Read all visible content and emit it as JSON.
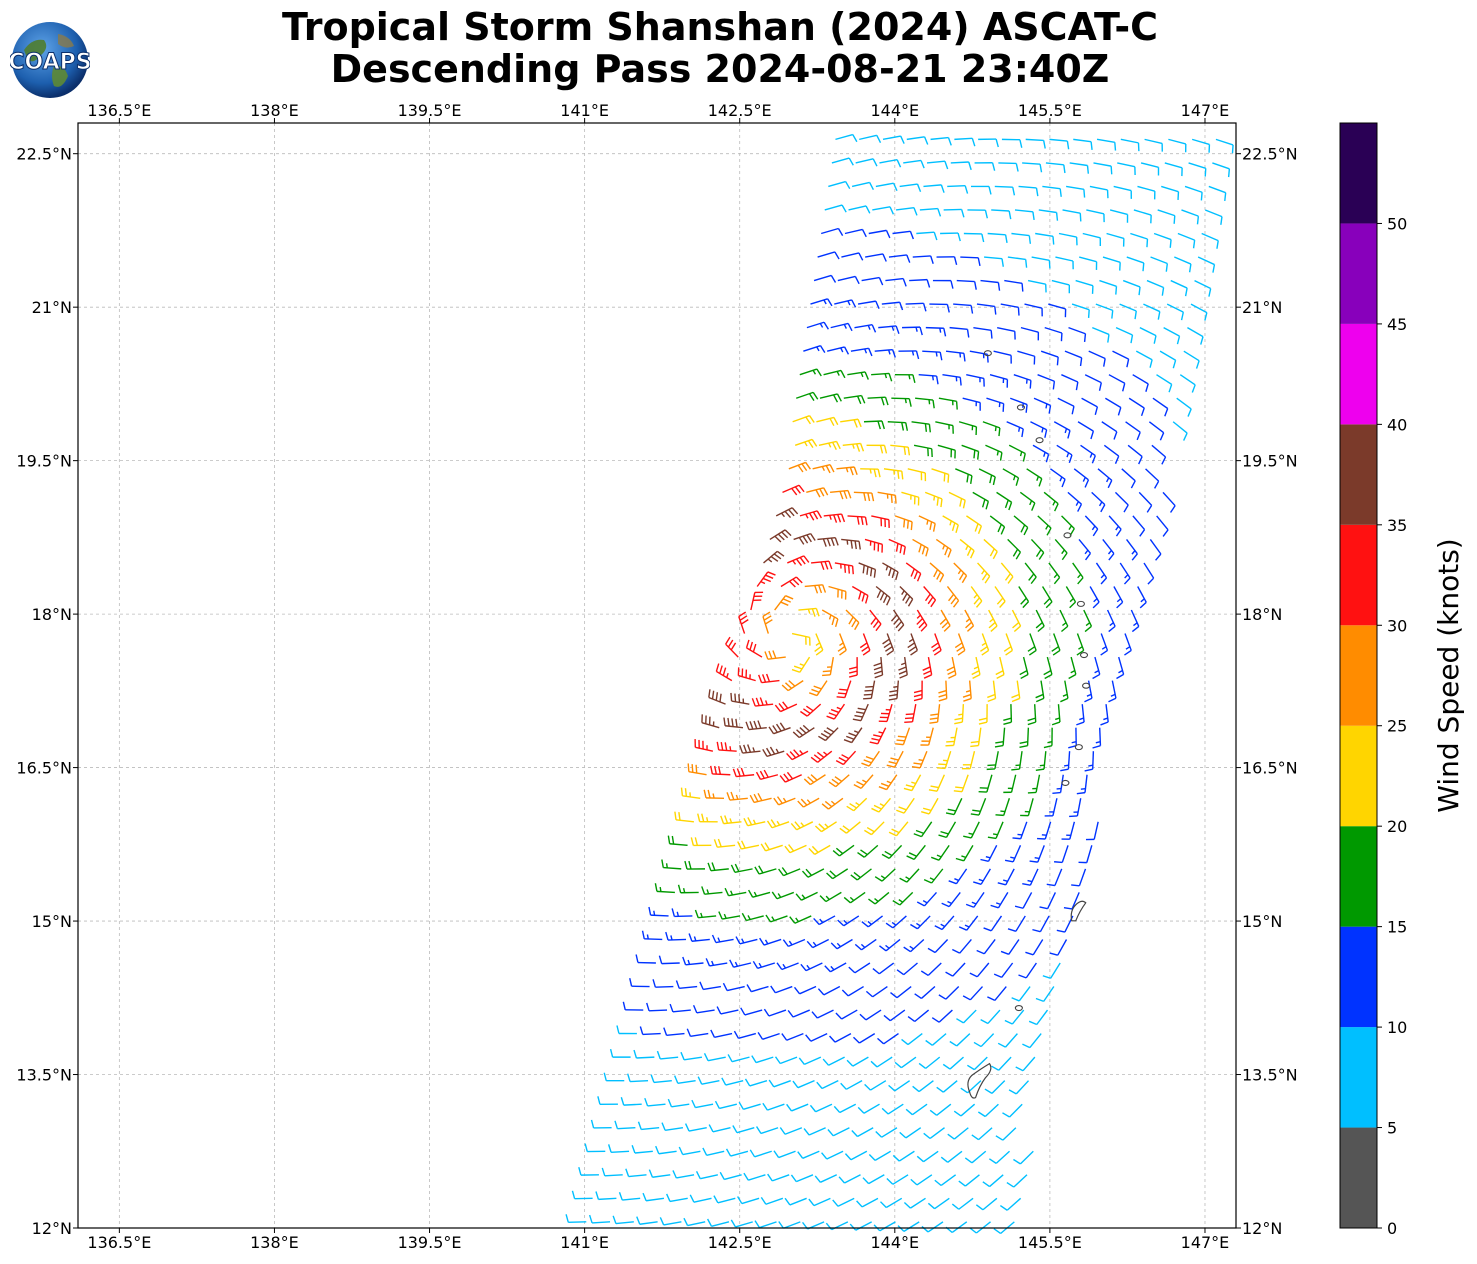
{
  "title_line1": "Tropical Storm Shanshan (2024) ASCAT-C",
  "title_line2": "Descending Pass 2024-08-21 23:40Z",
  "logo_text": "COAPS",
  "map": {
    "lon_range": [
      136.1,
      147.3
    ],
    "lat_range": [
      12.0,
      22.8
    ],
    "lon_ticks": [
      "136.5°E",
      "138°E",
      "139.5°E",
      "141°E",
      "142.5°E",
      "144°E",
      "145.5°E",
      "147°E"
    ],
    "lon_values": [
      136.5,
      138,
      139.5,
      141,
      142.5,
      144,
      145.5,
      147
    ],
    "lat_ticks": [
      "12°N",
      "13.5°N",
      "15°N",
      "16.5°N",
      "18°N",
      "19.5°N",
      "21°N",
      "22.5°N"
    ],
    "lat_values": [
      12,
      13.5,
      15,
      16.5,
      18,
      19.5,
      21,
      22.5
    ],
    "gridlines": true
  },
  "colorbar": {
    "label": "Wind Speed (knots)",
    "tick_labels": [
      "0",
      "5",
      "10",
      "15",
      "20",
      "25",
      "30",
      "35",
      "40",
      "45",
      "50"
    ],
    "bins": [
      {
        "min": 0,
        "max": 5,
        "color": "#555555"
      },
      {
        "min": 5,
        "max": 10,
        "color": "#00bfff"
      },
      {
        "min": 10,
        "max": 15,
        "color": "#0033ff"
      },
      {
        "min": 15,
        "max": 20,
        "color": "#009900"
      },
      {
        "min": 20,
        "max": 25,
        "color": "#ffd500"
      },
      {
        "min": 25,
        "max": 30,
        "color": "#ff8c00"
      },
      {
        "min": 30,
        "max": 35,
        "color": "#ff1111"
      },
      {
        "min": 35,
        "max": 40,
        "color": "#7b3a2a"
      },
      {
        "min": 40,
        "max": 45,
        "color": "#ee00ee"
      },
      {
        "min": 45,
        "max": 50,
        "color": "#8800bb"
      },
      {
        "min": 50,
        "max": 55,
        "color": "#2a0055"
      }
    ]
  },
  "storm_center": {
    "lon": 143.0,
    "lat": 17.8
  },
  "swath": {
    "lat_bottom": 12.0,
    "lat_top": 22.8,
    "west_lon_bottom": 141.0,
    "west_lon_top": 143.5,
    "east_lon_bottom": 145.2,
    "east_lon_top": 147.3,
    "west_cut_lat": 19.8
  },
  "islands": [
    {
      "name": "Guam",
      "lon": 144.8,
      "lat": 13.45
    },
    {
      "name": "Rota",
      "lon": 145.2,
      "lat": 14.15
    },
    {
      "name": "Saipan",
      "lon": 145.75,
      "lat": 15.1
    },
    {
      "name": "Anatahan",
      "lon": 145.65,
      "lat": 16.35
    },
    {
      "name": "Sarigan",
      "lon": 145.78,
      "lat": 16.7
    },
    {
      "name": "Guguan",
      "lon": 145.85,
      "lat": 17.3
    },
    {
      "name": "Alamagan",
      "lon": 145.83,
      "lat": 17.6
    },
    {
      "name": "Pagan",
      "lon": 145.8,
      "lat": 18.1
    },
    {
      "name": "Agrihan",
      "lon": 145.67,
      "lat": 18.77
    },
    {
      "name": "Asuncion",
      "lon": 145.4,
      "lat": 19.7
    },
    {
      "name": "Maug",
      "lon": 145.22,
      "lat": 20.02
    },
    {
      "name": "Farallon de Pajaros",
      "lon": 144.9,
      "lat": 20.55
    }
  ]
}
